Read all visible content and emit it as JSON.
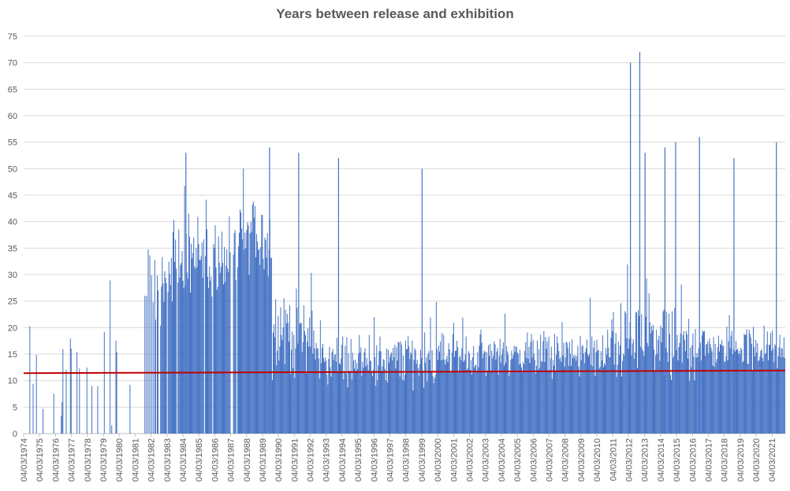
{
  "chart_data": {
    "type": "bar",
    "title": "Years between release and exhibition",
    "xlabel": "",
    "ylabel": "",
    "ylim": [
      0,
      75
    ],
    "y_ticks": [
      0,
      5,
      10,
      15,
      20,
      25,
      30,
      35,
      40,
      45,
      50,
      55,
      60,
      65,
      70,
      75
    ],
    "x_tick_labels": [
      "04/03/1974",
      "04/03/1975",
      "04/03/1976",
      "04/03/1977",
      "04/03/1978",
      "04/03/1979",
      "04/03/1980",
      "04/03/1981",
      "04/03/1982",
      "04/03/1983",
      "04/03/1984",
      "04/03/1985",
      "04/03/1986",
      "04/03/1987",
      "04/03/1988",
      "04/03/1989",
      "04/03/1990",
      "04/03/1991",
      "04/03/1992",
      "04/03/1993",
      "04/03/1994",
      "04/03/1995",
      "04/03/1996",
      "04/03/1997",
      "04/03/1998",
      "04/03/1999",
      "04/03/2000",
      "04/03/2001",
      "04/03/2002",
      "04/03/2003",
      "04/03/2004",
      "04/03/2005",
      "04/03/2006",
      "04/03/2007",
      "04/03/2008",
      "04/03/2009",
      "04/03/2010",
      "04/03/2011",
      "04/03/2012",
      "04/03/2013",
      "04/03/2014",
      "04/03/2015",
      "04/03/2016",
      "04/03/2017",
      "04/03/2018",
      "04/03/2019",
      "04/03/2020",
      "04/03/2021"
    ],
    "x_range": [
      "1974-03-04",
      "2022-01-01"
    ],
    "grid": true,
    "bar_color": "#4472C4",
    "trendline": {
      "type": "linear",
      "color": "#C00000",
      "start": 11.4,
      "end": 11.9
    },
    "notable_peaks": [
      {
        "x": "1984-05-01",
        "y": 53
      },
      {
        "x": "1989-08-01",
        "y": 54
      },
      {
        "x": "1991-06-01",
        "y": 53
      },
      {
        "x": "1993-12-01",
        "y": 52
      },
      {
        "x": "1999-03-01",
        "y": 50
      },
      {
        "x": "2012-04-01",
        "y": 70
      },
      {
        "x": "2012-11-01",
        "y": 72
      },
      {
        "x": "2013-03-01",
        "y": 53
      },
      {
        "x": "2014-06-01",
        "y": 54
      },
      {
        "x": "2015-02-01",
        "y": 55
      },
      {
        "x": "2016-08-01",
        "y": 56
      },
      {
        "x": "2018-10-01",
        "y": 52
      },
      {
        "x": "2021-06-01",
        "y": 55
      }
    ],
    "periods": [
      {
        "from": "1974-03-04",
        "to": "1981-10-01",
        "typical": 12,
        "variation": 14,
        "density": 0.22
      },
      {
        "from": "1981-10-01",
        "to": "1983-06-01",
        "typical": 28,
        "variation": 10,
        "density": 0.75
      },
      {
        "from": "1983-06-01",
        "to": "1987-09-01",
        "typical": 33,
        "variation": 9,
        "density": 0.9
      },
      {
        "from": "1987-09-01",
        "to": "1989-10-01",
        "typical": 37,
        "variation": 9,
        "density": 1.0
      },
      {
        "from": "1989-10-01",
        "to": "1992-06-01",
        "typical": 19,
        "variation": 9,
        "density": 1.0
      },
      {
        "from": "1992-06-01",
        "to": "2000-01-01",
        "typical": 14,
        "variation": 6,
        "density": 1.0
      },
      {
        "from": "2000-01-01",
        "to": "2011-01-01",
        "typical": 15,
        "variation": 5,
        "density": 1.0
      },
      {
        "from": "2011-01-01",
        "to": "2016-06-01",
        "typical": 17,
        "variation": 8,
        "density": 1.0
      },
      {
        "from": "2016-06-01",
        "to": "2022-01-01",
        "typical": 16,
        "variation": 5,
        "density": 1.0
      }
    ]
  }
}
